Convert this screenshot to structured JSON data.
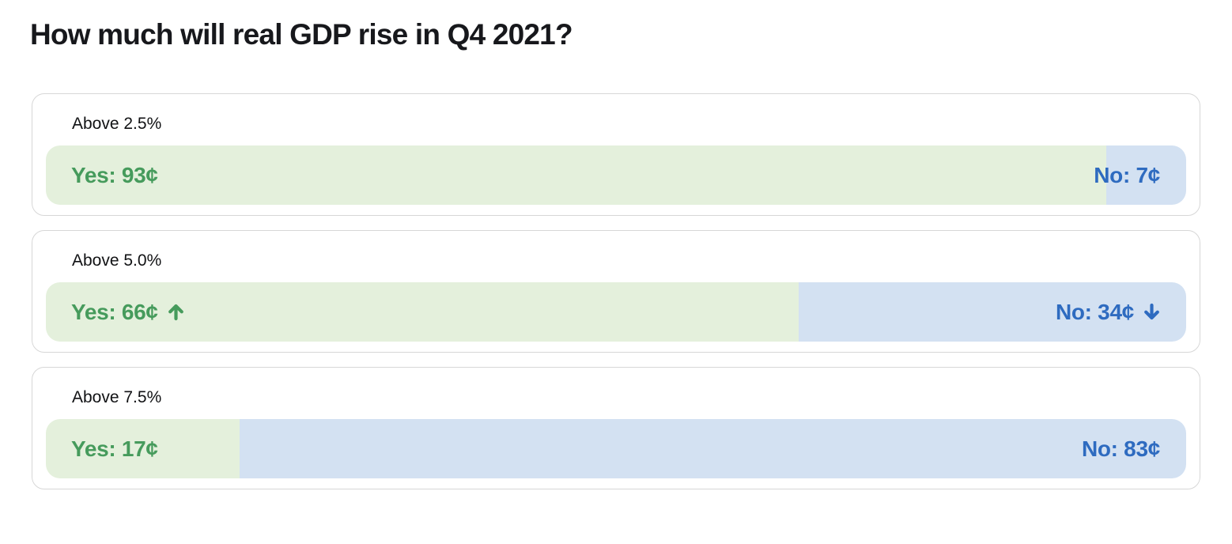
{
  "page": {
    "title": "How much will real GDP rise in Q4 2021?"
  },
  "markets": [
    {
      "label": "Above 2.5%",
      "yes_label": "Yes: 93¢",
      "no_label": "No: 7¢",
      "yes_pct": 93,
      "no_pct": 7,
      "yes_trend": "",
      "no_trend": ""
    },
    {
      "label": "Above 5.0%",
      "yes_label": "Yes: 66¢",
      "no_label": "No: 34¢",
      "yes_pct": 66,
      "no_pct": 34,
      "yes_trend": "up",
      "no_trend": "down"
    },
    {
      "label": "Above 7.5%",
      "yes_label": "Yes: 17¢",
      "no_label": "No: 83¢",
      "yes_pct": 17,
      "no_pct": 83,
      "yes_trend": "",
      "no_trend": ""
    }
  ],
  "colors": {
    "yes_bg": "#e4f0dc",
    "yes_text": "#469b5c",
    "no_bg": "#d3e1f2",
    "no_text": "#2e6bc0",
    "card_border": "#d7d7d7",
    "title_text": "#17181c"
  },
  "chart_data": {
    "type": "bar",
    "orientation": "horizontal",
    "title": "How much will real GDP rise in Q4 2021?",
    "categories": [
      "Above 2.5%",
      "Above 5.0%",
      "Above 7.5%"
    ],
    "series": [
      {
        "name": "Yes",
        "unit": "¢",
        "values": [
          93,
          66,
          17
        ]
      },
      {
        "name": "No",
        "unit": "¢",
        "values": [
          7,
          34,
          83
        ]
      }
    ],
    "xlim": [
      0,
      100
    ],
    "annotations": [
      "Above 5.0% Yes price trending up",
      "Above 5.0% No price trending down"
    ]
  }
}
